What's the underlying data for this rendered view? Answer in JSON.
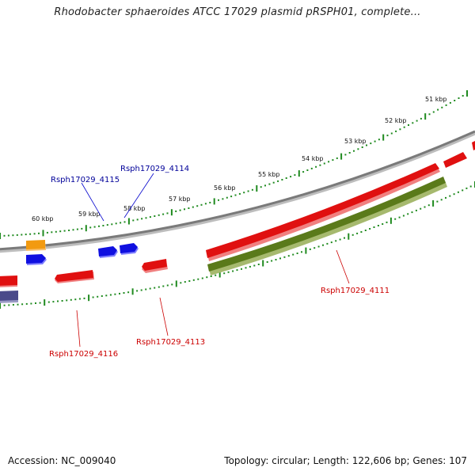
{
  "title": "Rhodobacter sphaeroides ATCC 17029 plasmid pRSPH01, complete...",
  "footer": {
    "accession": "Accession: NC_009040",
    "summary": "Topology: circular; Length: 122,606 bp; Genes: 107"
  },
  "colors": {
    "backbone": "#7a7a7a",
    "ticks": "#1f8a1f",
    "forward_gene": "#e01010",
    "reverse_gene": "#1010e0",
    "green_gene": "#5a7a1a",
    "orange_gene": "#f29a10",
    "purple_gene": "#4a4a8a",
    "red_label": "#cc0000",
    "blue_label": "#000099"
  },
  "scale_labels": [
    "51 kbp",
    "52 kbp",
    "53 kbp",
    "54 kbp",
    "55 kbp",
    "56 kbp",
    "57 kbp",
    "58 kbp",
    "59 kbp",
    "60 kbp"
  ],
  "gene_labels": [
    {
      "text": "Rsph17029_4115",
      "color": "blue"
    },
    {
      "text": "Rsph17029_4114",
      "color": "blue"
    },
    {
      "text": "Rsph17029_4111",
      "color": "red"
    },
    {
      "text": "Rsph17029_4113",
      "color": "red"
    },
    {
      "text": "Rsph17029_4116",
      "color": "red"
    }
  ]
}
